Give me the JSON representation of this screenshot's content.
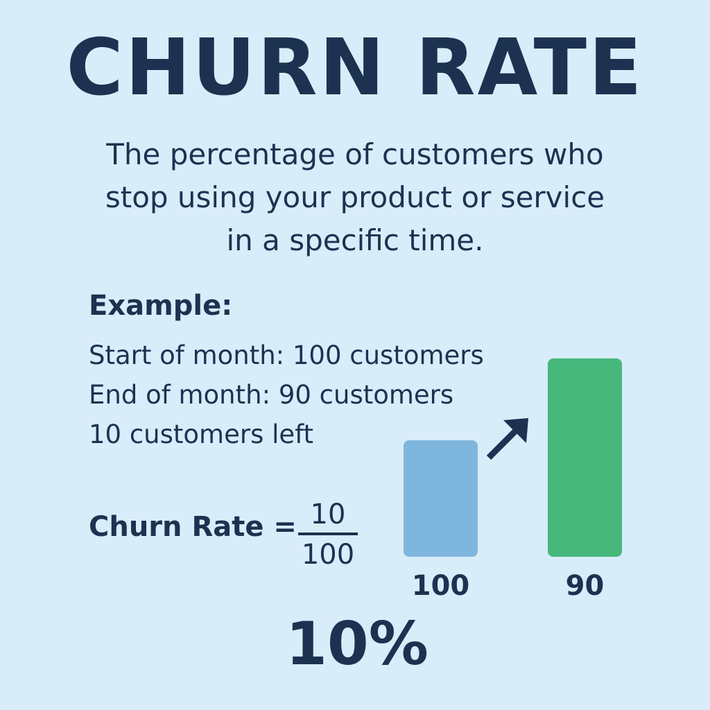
{
  "title": "CHURN RATE",
  "definition": {
    "line1": "The percentage of customers who",
    "line2": "stop using your product or service",
    "line3": "in a specific time."
  },
  "example": {
    "heading": "Example:",
    "start": "Start of month: 100 customers",
    "end": "End of month: 90 customers",
    "left": "10 customers left"
  },
  "formula": {
    "label": "Churn Rate =",
    "numerator": "10",
    "denominator": "100"
  },
  "result": "10%",
  "colors": {
    "background": "#d8ecf9",
    "text": "#1c3250",
    "start_bar": "#7fb6de",
    "end_bar": "#46b87c"
  },
  "chart_data": {
    "type": "bar",
    "categories": [
      "100",
      "90"
    ],
    "values": [
      100,
      90
    ],
    "icon": "arrow-up-right-icon"
  }
}
